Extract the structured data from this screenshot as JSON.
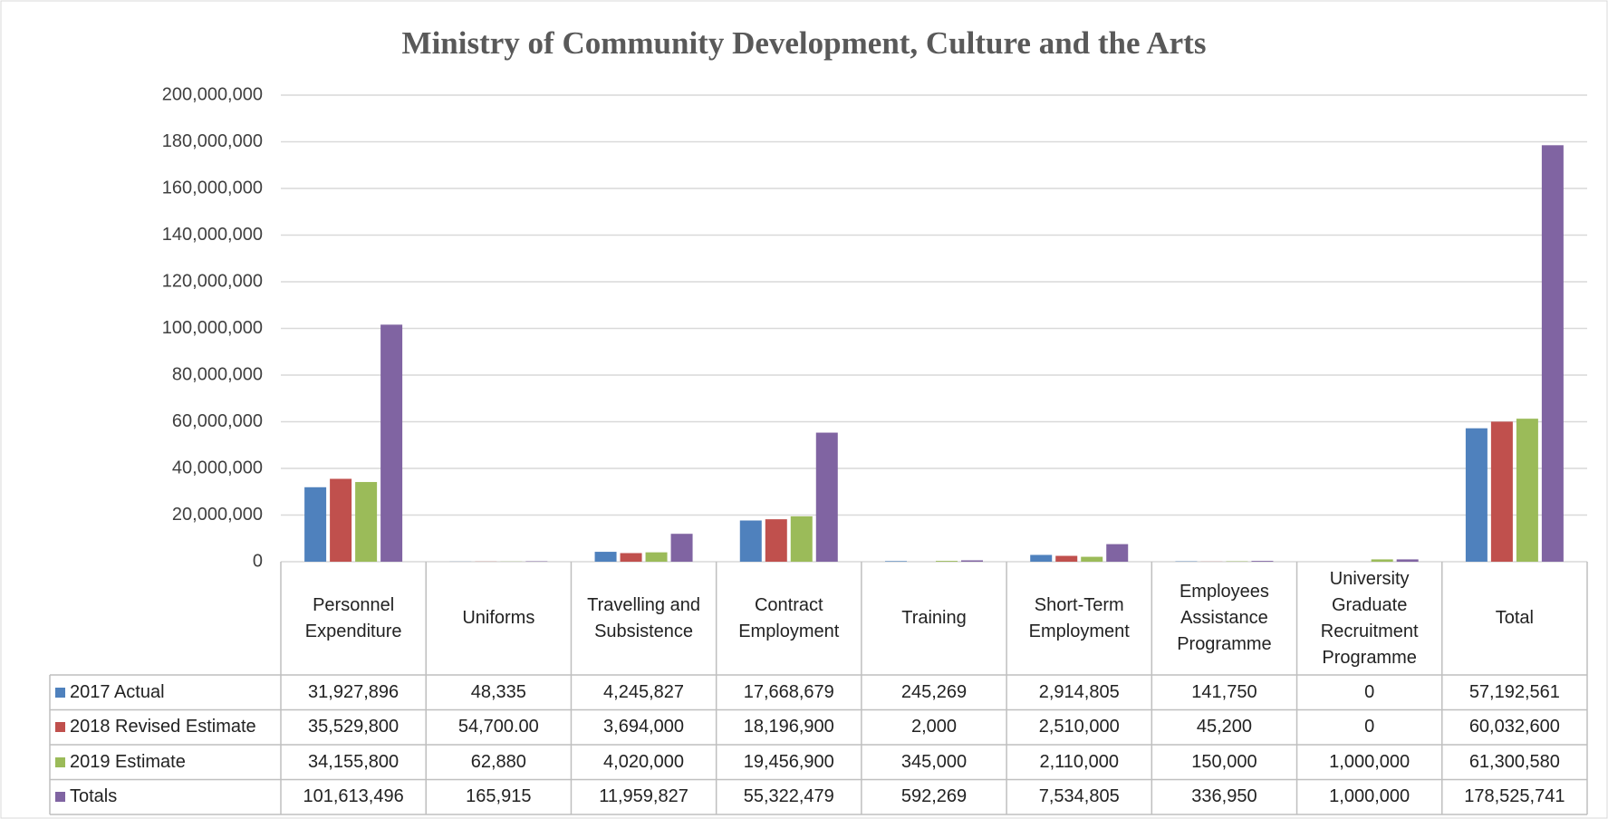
{
  "chart_data": {
    "type": "bar",
    "title": "Ministry of Community Development, Culture and the Arts",
    "categories": [
      "Personnel Expenditure",
      "Uniforms",
      "Travelling and Subsistence",
      "Contract Employment",
      "Training",
      "Short-Term Employment",
      "Employees Assistance Programme",
      "University Graduate Recruitment Programme",
      "Total"
    ],
    "series": [
      {
        "name": "2017 Actual",
        "color": "#4f81bd",
        "values": [
          31927896,
          48335,
          4245827,
          17668679,
          245269,
          2914805,
          141750,
          0,
          57192561
        ],
        "value_labels": [
          "31,927,896",
          "48,335",
          "4,245,827",
          "17,668,679",
          "245,269",
          "2,914,805",
          "141,750",
          "0",
          "57,192,561"
        ]
      },
      {
        "name": "2018 Revised Estimate",
        "color": "#c0504d",
        "values": [
          35529800,
          54700,
          3694000,
          18196900,
          2000,
          2510000,
          45200,
          0,
          60032600
        ],
        "value_labels": [
          "35,529,800",
          "54,700.00",
          "3,694,000",
          "18,196,900",
          "2,000",
          "2,510,000",
          "45,200",
          "0",
          "60,032,600"
        ]
      },
      {
        "name": "2019 Estimate",
        "color": "#9bbb59",
        "values": [
          34155800,
          62880,
          4020000,
          19456900,
          345000,
          2110000,
          150000,
          1000000,
          61300580
        ],
        "value_labels": [
          "34,155,800",
          "62,880",
          "4,020,000",
          "19,456,900",
          "345,000",
          "2,110,000",
          "150,000",
          "1,000,000",
          "61,300,580"
        ]
      },
      {
        "name": "Totals",
        "color": "#8064a2",
        "values": [
          101613496,
          165915,
          11959827,
          55322479,
          592269,
          7534805,
          336950,
          1000000,
          178525741
        ],
        "value_labels": [
          "101,613,496",
          "165,915",
          "11,959,827",
          "55,322,479",
          "592,269",
          "7,534,805",
          "336,950",
          "1,000,000",
          "178,525,741"
        ]
      }
    ],
    "ylim": [
      0,
      200000000
    ],
    "yticks": [
      0,
      {
        "value": 20000000,
        "label": "20,000,000"
      },
      {
        "value": 40000000,
        "label": "40,000,000"
      },
      {
        "value": 60000000,
        "label": "60,000,000"
      },
      {
        "value": 80000000,
        "label": "80,000,000"
      },
      {
        "value": 100000000,
        "label": "100,000,000"
      },
      {
        "value": 120000000,
        "label": "120,000,000"
      },
      {
        "value": 140000000,
        "label": "140,000,000"
      },
      {
        "value": 160000000,
        "label": "160,000,000"
      },
      {
        "value": 180000000,
        "label": "180,000,000"
      },
      {
        "value": 200000000,
        "label": "200,000,000"
      }
    ],
    "grid": true
  }
}
